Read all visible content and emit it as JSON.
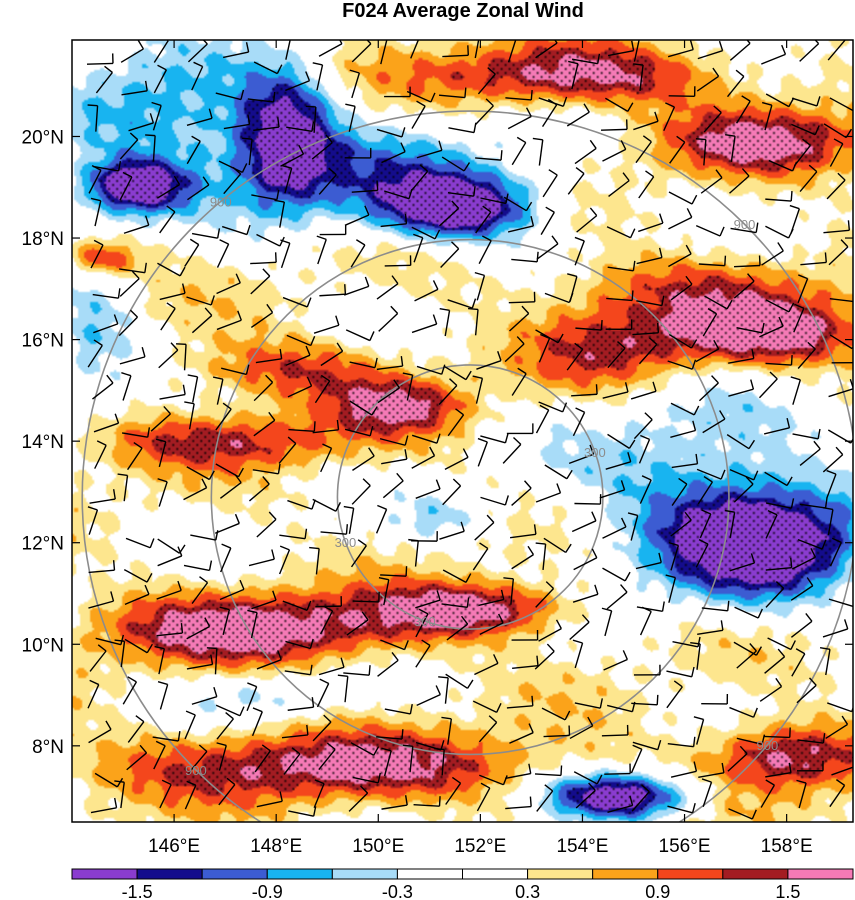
{
  "chart_data": {
    "type": "heatmap",
    "title": "F024 Average Zonal Wind",
    "x_ticks": [
      "146°E",
      "148°E",
      "150°E",
      "152°E",
      "154°E",
      "156°E",
      "158°E"
    ],
    "x_tick_values": [
      146,
      148,
      150,
      152,
      154,
      156,
      158
    ],
    "y_ticks": [
      "8°N",
      "10°N",
      "12°N",
      "14°N",
      "16°N",
      "18°N",
      "20°N"
    ],
    "y_tick_values": [
      8,
      10,
      12,
      14,
      16,
      18,
      20
    ],
    "xlim": [
      144.0,
      159.3
    ],
    "ylim": [
      6.5,
      21.9
    ],
    "colorbar": {
      "levels": [
        -1.8,
        -1.5,
        -1.2,
        -0.9,
        -0.6,
        -0.3,
        0.0,
        0.3,
        0.6,
        0.9,
        1.2,
        1.5,
        1.8
      ],
      "tick_labels": [
        "-1.5",
        "-0.9",
        "-0.3",
        "0.3",
        "0.9",
        "1.5"
      ],
      "tick_values": [
        -1.5,
        -0.9,
        -0.3,
        0.3,
        0.9,
        1.5
      ],
      "colors": [
        "#8a3ccf",
        "#140c8c",
        "#3c5cd2",
        "#18b4f0",
        "#a8dcf8",
        "#ffffff",
        "#ffffff",
        "#fde68e",
        "#fba31a",
        "#f4461c",
        "#a31c22",
        "#f57ab6"
      ]
    },
    "range_rings": [
      {
        "label": "300",
        "radius_deg": 2.6
      },
      {
        "label": "900",
        "radius_deg": 7.6
      }
    ],
    "ring_label_text": {
      "inner": "300",
      "outer": "900"
    },
    "storm_center": {
      "lon": 151.8,
      "lat": 12.9
    },
    "stippling": "significant regions dotted",
    "blobs": [
      {
        "lon": 147.7,
        "lat": 10.3,
        "rx": 3.2,
        "ry": 0.75,
        "value": 1.75
      },
      {
        "lon": 151.9,
        "lat": 10.7,
        "rx": 2.0,
        "ry": 0.55,
        "value": 1.7
      },
      {
        "lon": 149.0,
        "lat": 7.6,
        "rx": 4.6,
        "ry": 0.75,
        "value": 1.55
      },
      {
        "lon": 157.6,
        "lat": 16.1,
        "rx": 2.3,
        "ry": 0.7,
        "value": 1.7
      },
      {
        "lon": 153.8,
        "lat": 21.2,
        "rx": 3.0,
        "ry": 0.65,
        "value": 1.65
      },
      {
        "lon": 157.6,
        "lat": 19.9,
        "rx": 2.2,
        "ry": 0.7,
        "value": 1.55
      },
      {
        "lon": 158.0,
        "lat": 7.8,
        "rx": 1.6,
        "ry": 0.7,
        "value": 1.65
      },
      {
        "lon": 150.4,
        "lat": 14.7,
        "rx": 1.4,
        "ry": 0.55,
        "value": 1.45
      },
      {
        "lon": 148.2,
        "lat": 15.4,
        "rx": 2.2,
        "ry": 0.65,
        "value": 1.15
      },
      {
        "lon": 147.0,
        "lat": 14.0,
        "rx": 2.8,
        "ry": 0.55,
        "value": 1.2
      },
      {
        "lon": 154.5,
        "lat": 15.8,
        "rx": 1.8,
        "ry": 0.9,
        "value": 1.1
      },
      {
        "lon": 156.0,
        "lat": 17.0,
        "rx": 3.0,
        "ry": 0.7,
        "value": 1.0
      },
      {
        "lon": 144.6,
        "lat": 17.6,
        "rx": 0.7,
        "ry": 0.35,
        "value": 1.3
      },
      {
        "lon": 157.5,
        "lat": 12.0,
        "rx": 2.1,
        "ry": 1.15,
        "value": -1.85
      },
      {
        "lon": 154.7,
        "lat": 7.0,
        "rx": 1.5,
        "ry": 0.5,
        "value": -1.75
      },
      {
        "lon": 148.2,
        "lat": 20.0,
        "rx": 1.0,
        "ry": 1.4,
        "value": -1.55
      },
      {
        "lon": 151.5,
        "lat": 18.6,
        "rx": 1.6,
        "ry": 0.65,
        "value": -1.75
      },
      {
        "lon": 145.2,
        "lat": 19.0,
        "rx": 1.1,
        "ry": 0.55,
        "value": -1.7
      },
      {
        "lon": 145.8,
        "lat": 20.4,
        "rx": 2.3,
        "ry": 1.4,
        "value": -0.85
      },
      {
        "lon": 150.3,
        "lat": 19.2,
        "rx": 3.0,
        "ry": 1.1,
        "value": -0.7
      },
      {
        "lon": 144.4,
        "lat": 16.0,
        "rx": 1.0,
        "ry": 1.3,
        "value": -0.6
      },
      {
        "lon": 156.3,
        "lat": 13.2,
        "rx": 2.9,
        "ry": 2.0,
        "value": -0.55
      },
      {
        "lon": 151.2,
        "lat": 12.5,
        "rx": 0.9,
        "ry": 0.5,
        "value": -0.28
      },
      {
        "lon": 147.8,
        "lat": 9.0,
        "rx": 1.6,
        "ry": 0.5,
        "value": -0.25
      }
    ]
  }
}
